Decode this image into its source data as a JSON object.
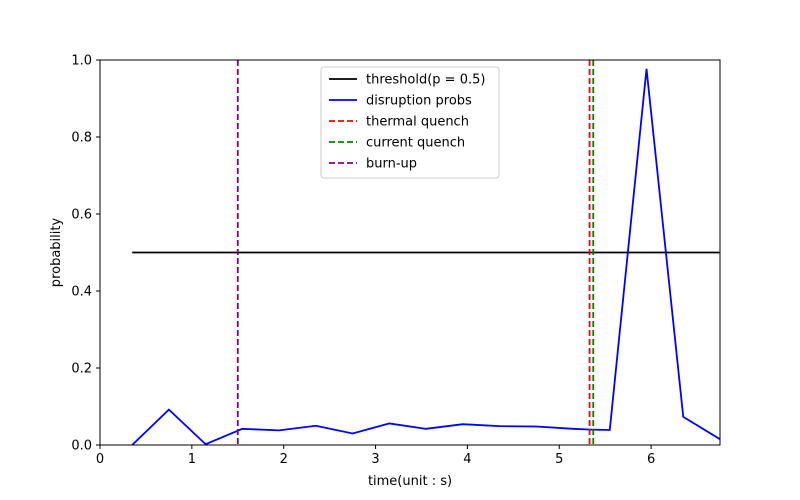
{
  "chart_data": {
    "type": "line",
    "xlabel": "time(unit : s)",
    "ylabel": "probability",
    "xlim": [
      0,
      6.75
    ],
    "ylim": [
      0,
      1.0
    ],
    "xticks": [
      0,
      1,
      2,
      3,
      4,
      5,
      6
    ],
    "yticks": [
      0.0,
      0.2,
      0.4,
      0.6,
      0.8,
      1.0
    ],
    "xtick_labels": [
      "0",
      "1",
      "2",
      "3",
      "4",
      "5",
      "6"
    ],
    "ytick_labels": [
      "0.0",
      "0.2",
      "0.4",
      "0.6",
      "0.8",
      "1.0"
    ],
    "grid": false,
    "legend_position": "top-center",
    "series": [
      {
        "name": "threshold(p = 0.5)",
        "style": "solid",
        "color": "#000000",
        "x": [
          0.35,
          6.75
        ],
        "y": [
          0.5,
          0.5
        ]
      },
      {
        "name": "disruption probs",
        "style": "solid",
        "color": "#0000ff",
        "x": [
          0.35,
          0.75,
          1.15,
          1.55,
          1.95,
          2.35,
          2.75,
          3.15,
          3.55,
          3.95,
          4.35,
          4.75,
          5.15,
          5.35,
          5.55,
          5.95,
          6.35,
          6.75
        ],
        "y": [
          0.0,
          0.092,
          0.002,
          0.042,
          0.038,
          0.05,
          0.03,
          0.056,
          0.042,
          0.054,
          0.049,
          0.048,
          0.042,
          0.04,
          0.039,
          0.977,
          0.073,
          0.015
        ]
      }
    ],
    "vlines": [
      {
        "name": "thermal quench",
        "x": 5.33,
        "color": "#ff0000",
        "style": "dashed"
      },
      {
        "name": "current quench",
        "x": 5.37,
        "color": "#008000",
        "style": "dashed"
      },
      {
        "name": "burn-up",
        "x": 1.5,
        "color": "#800080",
        "style": "dashed"
      }
    ],
    "legend": [
      {
        "label": "threshold(p = 0.5)",
        "color": "#000000",
        "style": "solid"
      },
      {
        "label": "disruption probs",
        "color": "#0000ff",
        "style": "solid"
      },
      {
        "label": "thermal quench",
        "color": "#ff0000",
        "style": "dashed"
      },
      {
        "label": "current quench",
        "color": "#008000",
        "style": "dashed"
      },
      {
        "label": "burn-up",
        "color": "#800080",
        "style": "dashed"
      }
    ]
  }
}
